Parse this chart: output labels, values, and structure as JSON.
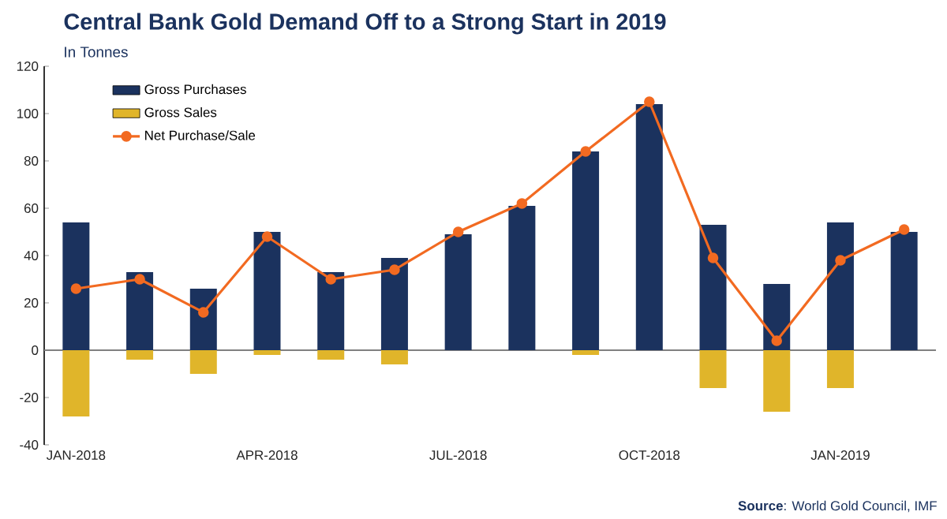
{
  "chart_data": {
    "type": "bar",
    "title": "Central Bank Gold Demand Off to a Strong Start in 2019",
    "subtitle": "In Tonnes",
    "categories": [
      "JAN-2018",
      null,
      null,
      "APR-2018",
      null,
      null,
      "JUL-2018",
      null,
      null,
      "OCT-2018",
      null,
      null,
      "JAN-2019",
      null
    ],
    "stacked": true,
    "series": [
      {
        "name": "Gross Purchases",
        "color": "#1b325e",
        "values": [
          54,
          33,
          26,
          50,
          33,
          39,
          49,
          61,
          84,
          104,
          53,
          28,
          54,
          50
        ]
      },
      {
        "name": "Gross Sales",
        "color": "#e0b52a",
        "values": [
          -28,
          -4,
          -10,
          -2,
          -4,
          -6,
          null,
          null,
          -2,
          null,
          -16,
          -26,
          -16,
          null
        ]
      },
      {
        "name": "Net Purchase/Sale",
        "type": "line",
        "color": "#f26a21",
        "marker": "circle",
        "values": [
          26,
          30,
          16,
          48,
          30,
          34,
          50,
          62,
          84,
          105,
          39,
          4,
          38,
          51
        ]
      }
    ],
    "ylim": [
      -40,
      120
    ],
    "yticks": [
      -40,
      -20,
      0,
      20,
      40,
      60,
      80,
      100,
      120
    ],
    "legend": "top left",
    "annotations": [
      "**Source**: World Gold Council, IMF"
    ]
  }
}
